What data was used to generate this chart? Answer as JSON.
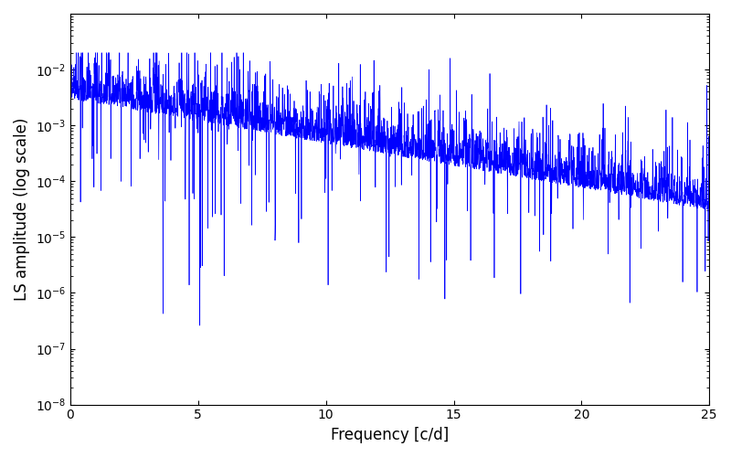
{
  "title": "",
  "xlabel": "Frequency [c/d]",
  "ylabel": "LS amplitude (log scale)",
  "xlim": [
    0,
    25
  ],
  "ylim": [
    1e-08,
    0.1
  ],
  "line_color": "#0000ff",
  "line_width": 0.5,
  "background_color": "#ffffff",
  "seed": 12345,
  "n_points": 3000,
  "freq_max": 25.0,
  "yticks": [
    1e-08,
    1e-07,
    1e-06,
    1e-05,
    0.0001,
    0.001,
    0.01
  ],
  "xticks": [
    0,
    5,
    10,
    15,
    20,
    25
  ]
}
